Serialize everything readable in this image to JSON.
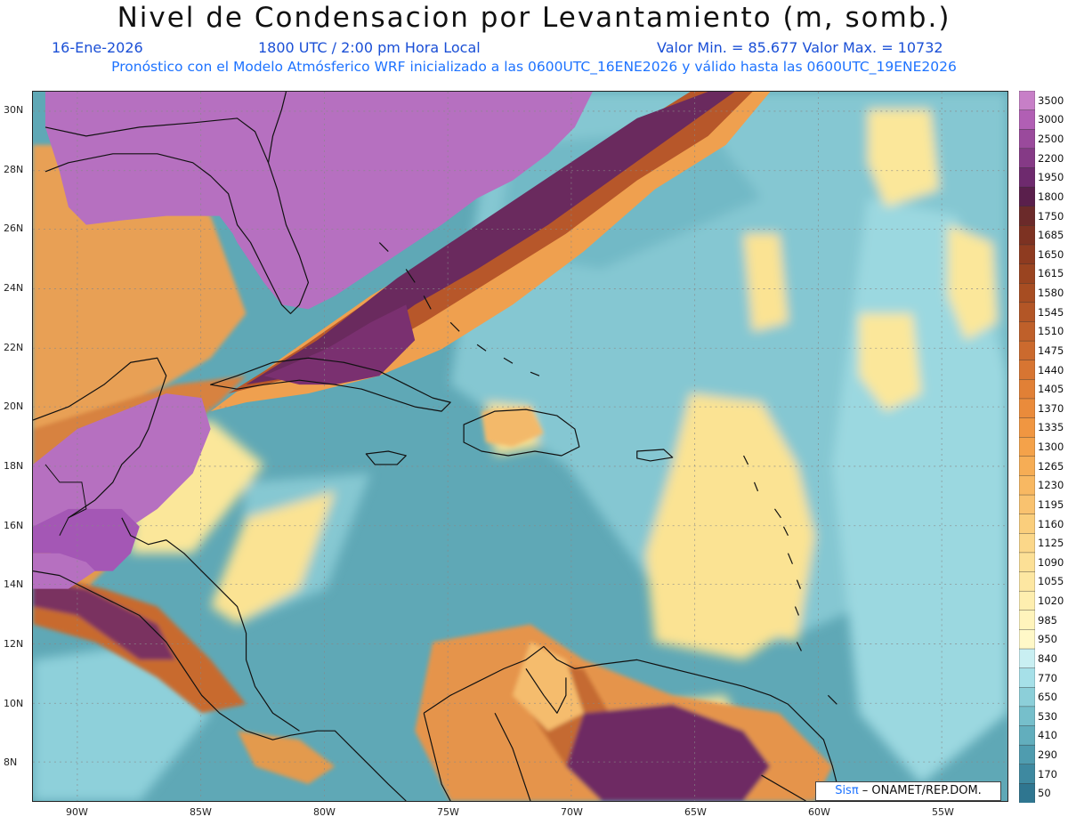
{
  "header": {
    "title": "Nivel de Condensacion por Levantamiento (m, somb.)",
    "date": "16-Ene-2026",
    "time": "1800 UTC / 2:00 pm Hora Local",
    "minmax": "Valor Min. = 85.677   Valor Max. = 10732",
    "model_line": "Pronóstico con el Modelo Atmósferico WRF inicializado a las 0600UTC_16ENE2026 y válido hasta las  0600UTC_19ENE2026"
  },
  "map": {
    "lon_labels": [
      "90W",
      "85W",
      "80W",
      "75W",
      "70W",
      "65W",
      "60W",
      "55W"
    ],
    "lat_labels": [
      "30N",
      "28N",
      "26N",
      "24N",
      "22N",
      "20N",
      "18N",
      "16N",
      "14N",
      "12N",
      "10N",
      "8N"
    ],
    "colors": {
      "ocean_base": "#5fa8b6",
      "ocean_light": "#93d2dc",
      "pale_yellow": "#fbe79a",
      "orange": "#f0a54e",
      "brown": "#b0562a",
      "dark_purple": "#6a2a5e",
      "purple": "#a457b5",
      "light_purple": "#b670c0",
      "coast": "#111111"
    }
  },
  "legend": {
    "levels": [
      {
        "label": "3500",
        "color": "#c77fc7"
      },
      {
        "label": "3000",
        "color": "#b15fb4"
      },
      {
        "label": "2500",
        "color": "#9a4a9c"
      },
      {
        "label": "2200",
        "color": "#853a86"
      },
      {
        "label": "1950",
        "color": "#6e2a6e"
      },
      {
        "label": "1800",
        "color": "#5a1f4c"
      },
      {
        "label": "1750",
        "color": "#6b2a2a"
      },
      {
        "label": "1685",
        "color": "#7d3222"
      },
      {
        "label": "1650",
        "color": "#8e3b20"
      },
      {
        "label": "1615",
        "color": "#9a4420"
      },
      {
        "label": "1580",
        "color": "#a74d22"
      },
      {
        "label": "1545",
        "color": "#b35626"
      },
      {
        "label": "1510",
        "color": "#bf602a"
      },
      {
        "label": "1475",
        "color": "#cb6a2e"
      },
      {
        "label": "1440",
        "color": "#d77532"
      },
      {
        "label": "1405",
        "color": "#e18036"
      },
      {
        "label": "1370",
        "color": "#ea8b3b"
      },
      {
        "label": "1335",
        "color": "#f09641"
      },
      {
        "label": "1300",
        "color": "#f4a24a"
      },
      {
        "label": "1265",
        "color": "#f6ad55"
      },
      {
        "label": "1230",
        "color": "#f8b862"
      },
      {
        "label": "1195",
        "color": "#f9c26f"
      },
      {
        "label": "1160",
        "color": "#face7c"
      },
      {
        "label": "1125",
        "color": "#fbd789"
      },
      {
        "label": "1090",
        "color": "#fce096"
      },
      {
        "label": "1055",
        "color": "#fde7a2"
      },
      {
        "label": "1020",
        "color": "#feeeaf"
      },
      {
        "label": "985",
        "color": "#fff4bc"
      },
      {
        "label": "950",
        "color": "#fff8c8"
      },
      {
        "label": "840",
        "color": "#c9eff2"
      },
      {
        "label": "770",
        "color": "#a6e0e8"
      },
      {
        "label": "650",
        "color": "#8ccfd9"
      },
      {
        "label": "530",
        "color": "#76bfcb"
      },
      {
        "label": "410",
        "color": "#62aebd"
      },
      {
        "label": "290",
        "color": "#4f9caf"
      },
      {
        "label": "170",
        "color": "#3e89a0"
      },
      {
        "label": "50",
        "color": "#2f7690"
      }
    ]
  },
  "credit": {
    "brand": "Sisπ",
    "text": " – ONAMET/REP.DOM."
  }
}
